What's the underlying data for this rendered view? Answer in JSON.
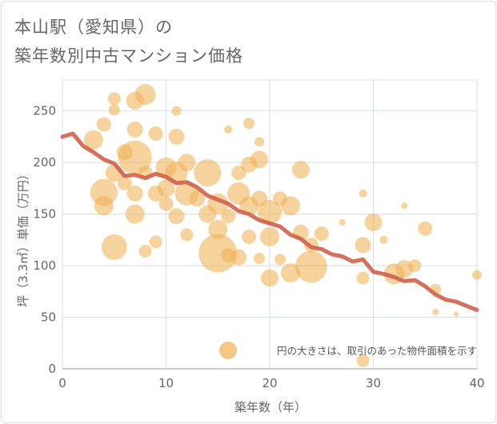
{
  "title_line1": "本山駅（愛知県）の",
  "title_line2": "築年数別中古マンション価格",
  "chart_data": {
    "type": "scatter",
    "title": "本山駅（愛知県）の築年数別中古マンション価格",
    "xlabel": "築年数（年）",
    "ylabel": "坪（3.3㎡）単価（万円）",
    "xlim": [
      0,
      40
    ],
    "ylim": [
      0,
      280
    ],
    "xticks": [
      0,
      10,
      20,
      30,
      40
    ],
    "yticks": [
      0,
      50,
      100,
      150,
      200,
      250
    ],
    "grid": true,
    "bubble_note": "円の大きさは、取引のあった物件面積を示す",
    "colors": {
      "bubble": "#f0b45a",
      "trend": "#d2604a",
      "grid": "#d7dde6"
    },
    "trend_line": {
      "x": [
        0,
        1,
        2,
        3,
        4,
        5,
        6,
        7,
        8,
        9,
        10,
        11,
        12,
        13,
        14,
        15,
        16,
        17,
        18,
        19,
        20,
        21,
        22,
        23,
        24,
        25,
        26,
        27,
        28,
        29,
        30,
        31,
        32,
        33,
        34,
        35,
        36,
        37,
        38,
        39,
        40
      ],
      "y": [
        225,
        228,
        216,
        210,
        203,
        199,
        187,
        188,
        185,
        189,
        186,
        180,
        181,
        176,
        168,
        164,
        160,
        153,
        150,
        144,
        141,
        138,
        130,
        126,
        118,
        116,
        111,
        109,
        104,
        106,
        94,
        92,
        89,
        85,
        86,
        80,
        72,
        67,
        65,
        61,
        57
      ]
    },
    "points": [
      {
        "x": 3,
        "y": 222,
        "s": 12
      },
      {
        "x": 4,
        "y": 237,
        "s": 9
      },
      {
        "x": 5,
        "y": 262,
        "s": 8
      },
      {
        "x": 5,
        "y": 251,
        "s": 7
      },
      {
        "x": 7,
        "y": 260,
        "s": 11
      },
      {
        "x": 8,
        "y": 266,
        "s": 13
      },
      {
        "x": 4,
        "y": 171,
        "s": 17
      },
      {
        "x": 4,
        "y": 158,
        "s": 12
      },
      {
        "x": 5,
        "y": 118,
        "s": 16
      },
      {
        "x": 5,
        "y": 190,
        "s": 11
      },
      {
        "x": 6,
        "y": 210,
        "s": 10
      },
      {
        "x": 6,
        "y": 180,
        "s": 9
      },
      {
        "x": 7,
        "y": 232,
        "s": 10
      },
      {
        "x": 7,
        "y": 205,
        "s": 21
      },
      {
        "x": 7,
        "y": 170,
        "s": 10
      },
      {
        "x": 7,
        "y": 150,
        "s": 12
      },
      {
        "x": 8,
        "y": 190,
        "s": 9
      },
      {
        "x": 8,
        "y": 114,
        "s": 8
      },
      {
        "x": 9,
        "y": 228,
        "s": 9
      },
      {
        "x": 9,
        "y": 170,
        "s": 10
      },
      {
        "x": 9,
        "y": 123,
        "s": 8
      },
      {
        "x": 10,
        "y": 195,
        "s": 13
      },
      {
        "x": 10,
        "y": 175,
        "s": 11
      },
      {
        "x": 10,
        "y": 160,
        "s": 9
      },
      {
        "x": 11,
        "y": 250,
        "s": 6
      },
      {
        "x": 11,
        "y": 225,
        "s": 10
      },
      {
        "x": 11,
        "y": 190,
        "s": 14
      },
      {
        "x": 11,
        "y": 148,
        "s": 10
      },
      {
        "x": 12,
        "y": 200,
        "s": 11
      },
      {
        "x": 12,
        "y": 170,
        "s": 15
      },
      {
        "x": 12,
        "y": 130,
        "s": 8
      },
      {
        "x": 13,
        "y": 165,
        "s": 10
      },
      {
        "x": 14,
        "y": 190,
        "s": 17
      },
      {
        "x": 14,
        "y": 150,
        "s": 11
      },
      {
        "x": 15,
        "y": 112,
        "s": 24
      },
      {
        "x": 15,
        "y": 160,
        "s": 13
      },
      {
        "x": 15,
        "y": 135,
        "s": 12
      },
      {
        "x": 16,
        "y": 148,
        "s": 9
      },
      {
        "x": 16,
        "y": 232,
        "s": 5
      },
      {
        "x": 16,
        "y": 110,
        "s": 9
      },
      {
        "x": 17,
        "y": 190,
        "s": 9
      },
      {
        "x": 17,
        "y": 170,
        "s": 14
      },
      {
        "x": 17,
        "y": 108,
        "s": 10
      },
      {
        "x": 18,
        "y": 238,
        "s": 7
      },
      {
        "x": 18,
        "y": 198,
        "s": 10
      },
      {
        "x": 18,
        "y": 158,
        "s": 12
      },
      {
        "x": 18,
        "y": 128,
        "s": 9
      },
      {
        "x": 19,
        "y": 220,
        "s": 6
      },
      {
        "x": 19,
        "y": 203,
        "s": 11
      },
      {
        "x": 19,
        "y": 165,
        "s": 10
      },
      {
        "x": 19,
        "y": 107,
        "s": 7
      },
      {
        "x": 20,
        "y": 152,
        "s": 15
      },
      {
        "x": 20,
        "y": 128,
        "s": 12
      },
      {
        "x": 20,
        "y": 88,
        "s": 11
      },
      {
        "x": 21,
        "y": 165,
        "s": 9
      },
      {
        "x": 21,
        "y": 106,
        "s": 7
      },
      {
        "x": 22,
        "y": 158,
        "s": 12
      },
      {
        "x": 22,
        "y": 93,
        "s": 12
      },
      {
        "x": 23,
        "y": 193,
        "s": 11
      },
      {
        "x": 23,
        "y": 132,
        "s": 10
      },
      {
        "x": 24,
        "y": 99,
        "s": 20
      },
      {
        "x": 24,
        "y": 120,
        "s": 9
      },
      {
        "x": 25,
        "y": 131,
        "s": 9
      },
      {
        "x": 29,
        "y": 170,
        "s": 5
      },
      {
        "x": 29,
        "y": 88,
        "s": 8
      },
      {
        "x": 29,
        "y": 120,
        "s": 10
      },
      {
        "x": 29,
        "y": 8,
        "s": 8
      },
      {
        "x": 30,
        "y": 142,
        "s": 11
      },
      {
        "x": 31,
        "y": 125,
        "s": 5
      },
      {
        "x": 32,
        "y": 92,
        "s": 13
      },
      {
        "x": 33,
        "y": 158,
        "s": 4
      },
      {
        "x": 33,
        "y": 97,
        "s": 11
      },
      {
        "x": 34,
        "y": 100,
        "s": 8
      },
      {
        "x": 35,
        "y": 136,
        "s": 9
      },
      {
        "x": 36,
        "y": 77,
        "s": 7
      },
      {
        "x": 36,
        "y": 55,
        "s": 4
      },
      {
        "x": 38,
        "y": 53,
        "s": 3
      },
      {
        "x": 40,
        "y": 91,
        "s": 6
      },
      {
        "x": 27,
        "y": 142,
        "s": 4
      }
    ]
  }
}
